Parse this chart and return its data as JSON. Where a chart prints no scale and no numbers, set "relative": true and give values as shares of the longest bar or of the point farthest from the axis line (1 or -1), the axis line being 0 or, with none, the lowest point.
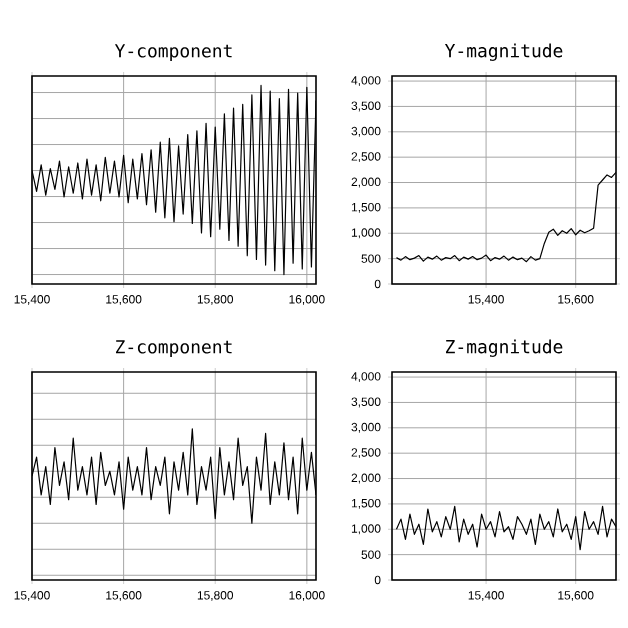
{
  "chart_data": [
    {
      "type": "line",
      "title": "Y-component",
      "relative": true,
      "grid": true,
      "marker": "none",
      "line_style": "solid",
      "color": "#000000",
      "xlim": [
        15400,
        16020
      ],
      "xticks": [
        {
          "value": 15400,
          "label": "15,400"
        },
        {
          "value": 15600,
          "label": "15,600"
        },
        {
          "value": 15800,
          "label": "15,800"
        },
        {
          "value": 16000,
          "label": "16,000"
        }
      ],
      "x": [
        15400,
        15410,
        15420,
        15430,
        15440,
        15450,
        15460,
        15470,
        15480,
        15490,
        15500,
        15510,
        15520,
        15530,
        15540,
        15550,
        15560,
        15570,
        15580,
        15590,
        15600,
        15610,
        15620,
        15630,
        15640,
        15650,
        15660,
        15670,
        15680,
        15690,
        15700,
        15710,
        15720,
        15730,
        15740,
        15750,
        15760,
        15770,
        15780,
        15790,
        15800,
        15810,
        15820,
        15830,
        15840,
        15850,
        15860,
        15870,
        15880,
        15890,
        15900,
        15910,
        15920,
        15930,
        15940,
        15950,
        15960,
        15970,
        15980,
        15990,
        16000,
        16010,
        16020
      ],
      "values": [
        0.55,
        0.44,
        0.58,
        0.42,
        0.56,
        0.45,
        0.6,
        0.41,
        0.57,
        0.43,
        0.59,
        0.4,
        0.61,
        0.42,
        0.58,
        0.39,
        0.62,
        0.43,
        0.6,
        0.41,
        0.63,
        0.38,
        0.61,
        0.4,
        0.64,
        0.37,
        0.66,
        0.33,
        0.7,
        0.3,
        0.72,
        0.28,
        0.68,
        0.32,
        0.74,
        0.27,
        0.76,
        0.22,
        0.8,
        0.2,
        0.78,
        0.24,
        0.85,
        0.18,
        0.88,
        0.15,
        0.9,
        0.1,
        0.95,
        0.08,
        1.0,
        0.05,
        0.97,
        0.02,
        0.93,
        0.0,
        0.98,
        0.06,
        0.96,
        0.03,
        0.99,
        0.04,
        0.92
      ]
    },
    {
      "type": "line",
      "title": "Y-magnitude",
      "grid": true,
      "marker": "none",
      "line_style": "solid",
      "color": "#000000",
      "xlim": [
        15190,
        15690
      ],
      "xticks": [
        {
          "value": 15400,
          "label": "15,400"
        },
        {
          "value": 15600,
          "label": "15,600"
        }
      ],
      "ylim": [
        0,
        4100
      ],
      "yticks": [
        0,
        {
          "value": 500,
          "label": "500"
        },
        {
          "value": 1000,
          "label": "1,000"
        },
        {
          "value": 1500,
          "label": "1,500"
        },
        {
          "value": 2000,
          "label": "2,000"
        },
        {
          "value": 2500,
          "label": "2,500"
        },
        {
          "value": 3000,
          "label": "3,000"
        },
        {
          "value": 3500,
          "label": "3,500"
        },
        {
          "value": 4000,
          "label": "4,000"
        }
      ],
      "x": [
        15200,
        15210,
        15220,
        15230,
        15240,
        15250,
        15260,
        15270,
        15280,
        15290,
        15300,
        15310,
        15320,
        15330,
        15340,
        15350,
        15360,
        15370,
        15380,
        15390,
        15400,
        15410,
        15420,
        15430,
        15440,
        15450,
        15460,
        15470,
        15480,
        15490,
        15500,
        15510,
        15520,
        15530,
        15540,
        15550,
        15560,
        15570,
        15580,
        15590,
        15600,
        15610,
        15620,
        15630,
        15640,
        15650,
        15660,
        15670,
        15680,
        15690
      ],
      "values": [
        520,
        470,
        540,
        480,
        510,
        560,
        450,
        530,
        490,
        550,
        470,
        520,
        500,
        560,
        460,
        530,
        490,
        540,
        480,
        510,
        570,
        460,
        520,
        490,
        550,
        470,
        530,
        480,
        510,
        440,
        540,
        470,
        500,
        800,
        1020,
        1080,
        960,
        1050,
        1000,
        1090,
        970,
        1060,
        1010,
        1050,
        1100,
        1950,
        2050,
        2150,
        2100,
        2200
      ]
    },
    {
      "type": "line",
      "title": "Z-component",
      "relative": true,
      "grid": true,
      "marker": "none",
      "line_style": "solid",
      "color": "#000000",
      "xlim": [
        15400,
        16020
      ],
      "xticks": [
        {
          "value": 15400,
          "label": "15,400"
        },
        {
          "value": 15600,
          "label": "15,600"
        },
        {
          "value": 15800,
          "label": "15,800"
        },
        {
          "value": 16000,
          "label": "16,000"
        }
      ],
      "x": [
        15400,
        15410,
        15420,
        15430,
        15440,
        15450,
        15460,
        15470,
        15480,
        15490,
        15500,
        15510,
        15520,
        15530,
        15540,
        15550,
        15560,
        15570,
        15580,
        15590,
        15600,
        15610,
        15620,
        15630,
        15640,
        15650,
        15660,
        15670,
        15680,
        15690,
        15700,
        15710,
        15720,
        15730,
        15740,
        15750,
        15760,
        15770,
        15780,
        15790,
        15800,
        15810,
        15820,
        15830,
        15840,
        15850,
        15860,
        15870,
        15880,
        15890,
        15900,
        15910,
        15920,
        15930,
        15940,
        15950,
        15960,
        15970,
        15980,
        15990,
        16000,
        16010,
        16020
      ],
      "values": [
        0.5,
        0.7,
        0.3,
        0.6,
        0.2,
        0.8,
        0.4,
        0.65,
        0.25,
        0.9,
        0.35,
        0.6,
        0.3,
        0.7,
        0.2,
        0.75,
        0.4,
        0.55,
        0.3,
        0.65,
        0.15,
        0.7,
        0.35,
        0.6,
        0.3,
        0.8,
        0.25,
        0.6,
        0.4,
        0.7,
        0.1,
        0.65,
        0.35,
        0.75,
        0.3,
        1.0,
        0.2,
        0.6,
        0.35,
        0.7,
        0.05,
        0.8,
        0.3,
        0.65,
        0.25,
        0.9,
        0.4,
        0.6,
        0.0,
        0.7,
        0.35,
        0.95,
        0.2,
        0.65,
        0.3,
        0.85,
        0.25,
        0.7,
        0.1,
        0.9,
        0.35,
        0.75,
        0.3
      ]
    },
    {
      "type": "line",
      "title": "Z-magnitude",
      "grid": true,
      "marker": "none",
      "line_style": "solid",
      "color": "#000000",
      "xlim": [
        15190,
        15690
      ],
      "xticks": [
        {
          "value": 15400,
          "label": "15,400"
        },
        {
          "value": 15600,
          "label": "15,600"
        }
      ],
      "ylim": [
        0,
        4100
      ],
      "yticks": [
        0,
        {
          "value": 500,
          "label": "500"
        },
        {
          "value": 1000,
          "label": "1,000"
        },
        {
          "value": 1500,
          "label": "1,500"
        },
        {
          "value": 2000,
          "label": "2,000"
        },
        {
          "value": 2500,
          "label": "2,500"
        },
        {
          "value": 3000,
          "label": "3,000"
        },
        {
          "value": 3500,
          "label": "3,500"
        },
        {
          "value": 4000,
          "label": "4,000"
        }
      ],
      "x": [
        15200,
        15210,
        15220,
        15230,
        15240,
        15250,
        15260,
        15270,
        15280,
        15290,
        15300,
        15310,
        15320,
        15330,
        15340,
        15350,
        15360,
        15370,
        15380,
        15390,
        15400,
        15410,
        15420,
        15430,
        15440,
        15450,
        15460,
        15470,
        15480,
        15490,
        15500,
        15510,
        15520,
        15530,
        15540,
        15550,
        15560,
        15570,
        15580,
        15590,
        15600,
        15610,
        15620,
        15630,
        15640,
        15650,
        15660,
        15670,
        15680,
        15690
      ],
      "values": [
        1000,
        1200,
        800,
        1300,
        900,
        1100,
        700,
        1400,
        950,
        1150,
        850,
        1250,
        1000,
        1450,
        750,
        1200,
        900,
        1100,
        650,
        1300,
        1000,
        1150,
        850,
        1350,
        950,
        1050,
        800,
        1250,
        1100,
        900,
        1200,
        700,
        1300,
        1000,
        1150,
        850,
        1400,
        950,
        1100,
        800,
        1250,
        600,
        1350,
        1000,
        1150,
        900,
        1450,
        850,
        1200,
        1050
      ]
    }
  ]
}
